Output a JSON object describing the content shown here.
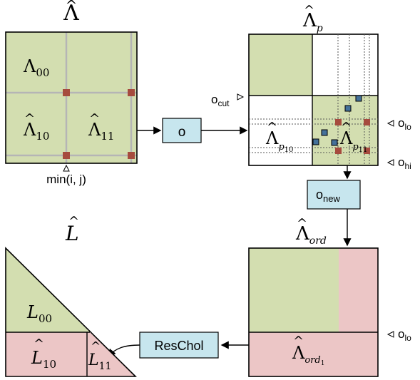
{
  "top_left": {
    "title": "Λ̂",
    "q00": "Λ00",
    "q10": "Λ̂10",
    "q11": "Λ̂11",
    "min_label": "min(i, j)"
  },
  "op_box": {
    "label": "o"
  },
  "top_right": {
    "title": "Λ̂p",
    "p10": "Λ̂p10",
    "p11": "Λ̂p11",
    "ocut": "ocut",
    "olo": "olo",
    "ohi": "ohi"
  },
  "onew_box": {
    "label": "onew"
  },
  "bottom_right": {
    "title": "Λ̂ord",
    "lower": "Λ̂ord1",
    "olo": "olo"
  },
  "reschol_box": {
    "label": "ResChol"
  },
  "bottom_left": {
    "title": "L̂",
    "l00": "L00",
    "l10": "L̂10",
    "l11": "L̂11"
  },
  "colors": {
    "green": "#d3deb0",
    "pink": "#ecc6c6",
    "box": "#c7e6ee",
    "red_marker": "#a64b3e",
    "blue_marker": "#44719a"
  }
}
